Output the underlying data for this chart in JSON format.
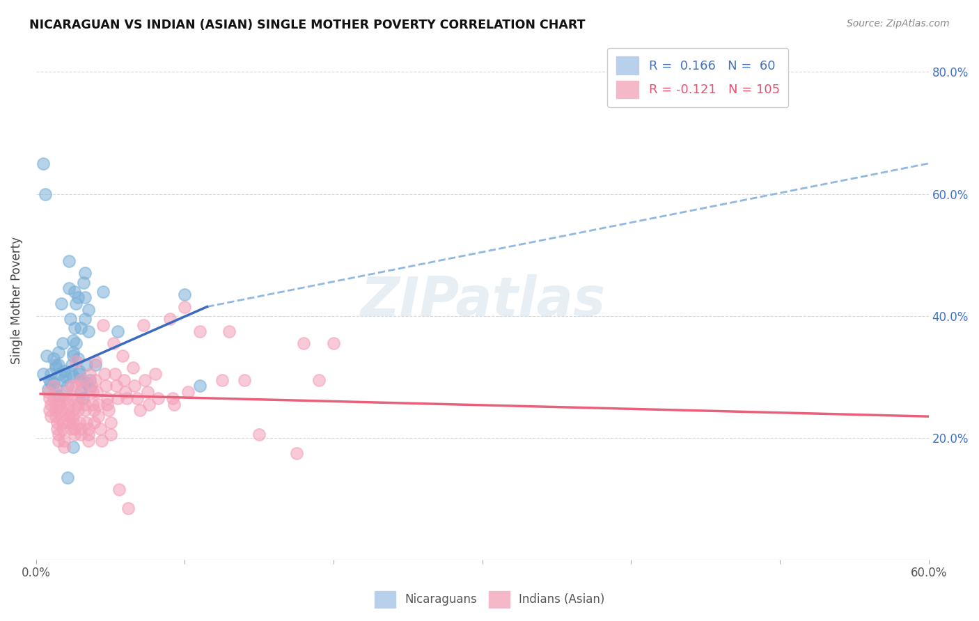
{
  "title": "NICARAGUAN VS INDIAN (ASIAN) SINGLE MOTHER POVERTY CORRELATION CHART",
  "source": "Source: ZipAtlas.com",
  "ylabel": "Single Mother Poverty",
  "xlim": [
    0.0,
    0.6
  ],
  "ylim": [
    0.0,
    0.85
  ],
  "watermark_text": "ZIPatlas",
  "blue_color": "#7ab0d8",
  "pink_color": "#f4a0b8",
  "blue_line_color": "#3a6abf",
  "pink_line_color": "#e8607a",
  "dashed_line_color": "#90b8e0",
  "nicaraguan_points": [
    [
      0.005,
      0.305
    ],
    [
      0.007,
      0.335
    ],
    [
      0.008,
      0.28
    ],
    [
      0.009,
      0.295
    ],
    [
      0.01,
      0.305
    ],
    [
      0.01,
      0.29
    ],
    [
      0.012,
      0.33
    ],
    [
      0.012,
      0.29
    ],
    [
      0.013,
      0.315
    ],
    [
      0.013,
      0.32
    ],
    [
      0.013,
      0.28
    ],
    [
      0.015,
      0.32
    ],
    [
      0.015,
      0.34
    ],
    [
      0.015,
      0.27
    ],
    [
      0.016,
      0.305
    ],
    [
      0.017,
      0.42
    ],
    [
      0.018,
      0.355
    ],
    [
      0.018,
      0.295
    ],
    [
      0.019,
      0.31
    ],
    [
      0.02,
      0.3
    ],
    [
      0.021,
      0.285
    ],
    [
      0.021,
      0.135
    ],
    [
      0.022,
      0.49
    ],
    [
      0.022,
      0.445
    ],
    [
      0.023,
      0.395
    ],
    [
      0.024,
      0.305
    ],
    [
      0.024,
      0.32
    ],
    [
      0.025,
      0.36
    ],
    [
      0.025,
      0.34
    ],
    [
      0.025,
      0.335
    ],
    [
      0.025,
      0.3
    ],
    [
      0.025,
      0.185
    ],
    [
      0.026,
      0.44
    ],
    [
      0.026,
      0.38
    ],
    [
      0.027,
      0.355
    ],
    [
      0.027,
      0.42
    ],
    [
      0.028,
      0.43
    ],
    [
      0.028,
      0.33
    ],
    [
      0.029,
      0.305
    ],
    [
      0.029,
      0.31
    ],
    [
      0.03,
      0.38
    ],
    [
      0.03,
      0.295
    ],
    [
      0.03,
      0.275
    ],
    [
      0.031,
      0.265
    ],
    [
      0.032,
      0.455
    ],
    [
      0.033,
      0.43
    ],
    [
      0.033,
      0.395
    ],
    [
      0.033,
      0.47
    ],
    [
      0.034,
      0.32
    ],
    [
      0.034,
      0.29
    ],
    [
      0.035,
      0.41
    ],
    [
      0.035,
      0.375
    ],
    [
      0.036,
      0.295
    ],
    [
      0.036,
      0.28
    ],
    [
      0.04,
      0.32
    ],
    [
      0.045,
      0.44
    ],
    [
      0.055,
      0.375
    ],
    [
      0.1,
      0.435
    ],
    [
      0.11,
      0.285
    ],
    [
      0.005,
      0.65
    ],
    [
      0.006,
      0.6
    ]
  ],
  "indian_points": [
    [
      0.008,
      0.275
    ],
    [
      0.009,
      0.265
    ],
    [
      0.009,
      0.245
    ],
    [
      0.01,
      0.255
    ],
    [
      0.01,
      0.235
    ],
    [
      0.012,
      0.285
    ],
    [
      0.012,
      0.265
    ],
    [
      0.013,
      0.255
    ],
    [
      0.013,
      0.245
    ],
    [
      0.013,
      0.235
    ],
    [
      0.014,
      0.225
    ],
    [
      0.014,
      0.215
    ],
    [
      0.015,
      0.205
    ],
    [
      0.015,
      0.195
    ],
    [
      0.016,
      0.265
    ],
    [
      0.016,
      0.255
    ],
    [
      0.017,
      0.245
    ],
    [
      0.017,
      0.235
    ],
    [
      0.018,
      0.225
    ],
    [
      0.018,
      0.215
    ],
    [
      0.019,
      0.195
    ],
    [
      0.019,
      0.185
    ],
    [
      0.02,
      0.275
    ],
    [
      0.02,
      0.265
    ],
    [
      0.021,
      0.255
    ],
    [
      0.021,
      0.245
    ],
    [
      0.022,
      0.235
    ],
    [
      0.022,
      0.225
    ],
    [
      0.023,
      0.215
    ],
    [
      0.024,
      0.285
    ],
    [
      0.024,
      0.265
    ],
    [
      0.025,
      0.245
    ],
    [
      0.025,
      0.235
    ],
    [
      0.025,
      0.225
    ],
    [
      0.026,
      0.215
    ],
    [
      0.026,
      0.205
    ],
    [
      0.027,
      0.325
    ],
    [
      0.027,
      0.285
    ],
    [
      0.028,
      0.265
    ],
    [
      0.028,
      0.255
    ],
    [
      0.028,
      0.245
    ],
    [
      0.029,
      0.225
    ],
    [
      0.03,
      0.215
    ],
    [
      0.03,
      0.205
    ],
    [
      0.03,
      0.295
    ],
    [
      0.031,
      0.285
    ],
    [
      0.032,
      0.265
    ],
    [
      0.033,
      0.255
    ],
    [
      0.033,
      0.245
    ],
    [
      0.034,
      0.225
    ],
    [
      0.035,
      0.215
    ],
    [
      0.035,
      0.205
    ],
    [
      0.035,
      0.195
    ],
    [
      0.036,
      0.305
    ],
    [
      0.037,
      0.285
    ],
    [
      0.038,
      0.275
    ],
    [
      0.038,
      0.255
    ],
    [
      0.039,
      0.245
    ],
    [
      0.039,
      0.225
    ],
    [
      0.04,
      0.325
    ],
    [
      0.04,
      0.295
    ],
    [
      0.041,
      0.275
    ],
    [
      0.042,
      0.255
    ],
    [
      0.042,
      0.235
    ],
    [
      0.043,
      0.215
    ],
    [
      0.044,
      0.195
    ],
    [
      0.045,
      0.385
    ],
    [
      0.046,
      0.305
    ],
    [
      0.047,
      0.285
    ],
    [
      0.048,
      0.265
    ],
    [
      0.048,
      0.255
    ],
    [
      0.049,
      0.245
    ],
    [
      0.05,
      0.225
    ],
    [
      0.05,
      0.205
    ],
    [
      0.052,
      0.355
    ],
    [
      0.053,
      0.305
    ],
    [
      0.054,
      0.285
    ],
    [
      0.055,
      0.265
    ],
    [
      0.056,
      0.115
    ],
    [
      0.058,
      0.335
    ],
    [
      0.059,
      0.295
    ],
    [
      0.06,
      0.275
    ],
    [
      0.061,
      0.265
    ],
    [
      0.062,
      0.085
    ],
    [
      0.065,
      0.315
    ],
    [
      0.066,
      0.285
    ],
    [
      0.068,
      0.265
    ],
    [
      0.07,
      0.245
    ],
    [
      0.072,
      0.385
    ],
    [
      0.073,
      0.295
    ],
    [
      0.075,
      0.275
    ],
    [
      0.076,
      0.255
    ],
    [
      0.08,
      0.305
    ],
    [
      0.082,
      0.265
    ],
    [
      0.09,
      0.395
    ],
    [
      0.092,
      0.265
    ],
    [
      0.093,
      0.255
    ],
    [
      0.1,
      0.415
    ],
    [
      0.102,
      0.275
    ],
    [
      0.11,
      0.375
    ],
    [
      0.125,
      0.295
    ],
    [
      0.13,
      0.375
    ],
    [
      0.14,
      0.295
    ],
    [
      0.15,
      0.205
    ],
    [
      0.175,
      0.175
    ],
    [
      0.18,
      0.355
    ],
    [
      0.19,
      0.295
    ],
    [
      0.2,
      0.355
    ]
  ],
  "blue_line_x": [
    0.003,
    0.115
  ],
  "blue_line_y": [
    0.295,
    0.415
  ],
  "dashed_line_x": [
    0.115,
    0.6
  ],
  "dashed_line_y": [
    0.415,
    0.65
  ],
  "pink_line_x": [
    0.003,
    0.6
  ],
  "pink_line_y": [
    0.272,
    0.235
  ]
}
